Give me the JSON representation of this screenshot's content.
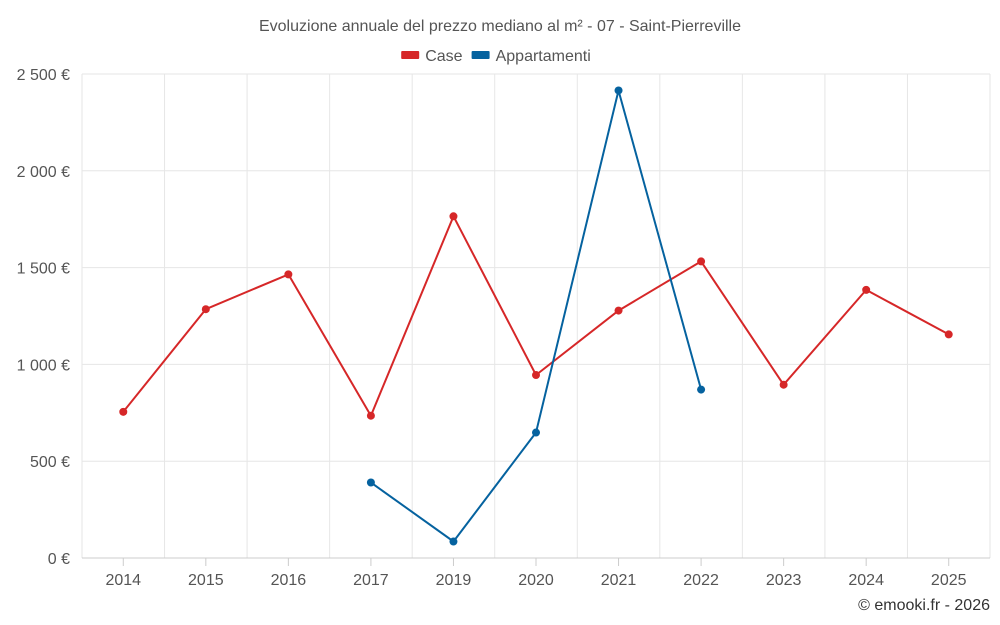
{
  "chart_data": {
    "type": "line",
    "title": "Evoluzione annuale del prezzo mediano al m² - 07 - Saint-Pierreville",
    "categories": [
      "2014",
      "2015",
      "2016",
      "2017",
      "2019",
      "2020",
      "2021",
      "2022",
      "2023",
      "2024",
      "2025"
    ],
    "series": [
      {
        "name": "Case",
        "color": "#d62728",
        "values": [
          755,
          1285,
          1465,
          735,
          1765,
          945,
          1278,
          1532,
          895,
          1385,
          1155
        ]
      },
      {
        "name": "Appartamenti",
        "color": "#05629f",
        "values": [
          null,
          null,
          null,
          390,
          85,
          648,
          2415,
          870,
          null,
          null,
          null
        ]
      }
    ],
    "ylim": [
      0,
      2500
    ],
    "yticks": [
      0,
      500,
      1000,
      1500,
      2000,
      2500
    ],
    "ytick_labels": [
      "0 €",
      "500 €",
      "1 000 €",
      "1 500 €",
      "2 000 €",
      "2 500 €"
    ],
    "legend_position": "top-center",
    "grid": true,
    "xlabel": "",
    "ylabel": ""
  },
  "credit": "© emooki.fr - 2026"
}
